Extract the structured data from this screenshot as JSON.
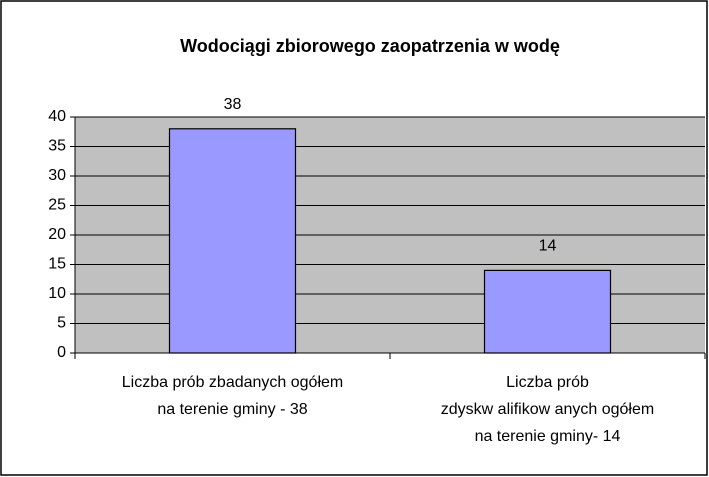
{
  "chart_data": {
    "type": "bar",
    "title": "Wodociągi zbiorowego zaopatrzenia w wodę",
    "categories": [
      [
        "Liczba prób zbadanych ogółem",
        "na terenie gminy - 38"
      ],
      [
        "Liczba prób",
        "zdyskw alifikow anych ogółem",
        "na terenie gminy- 14"
      ]
    ],
    "values": [
      38,
      14
    ],
    "color": "#9999ff",
    "plot_color": "#c0c0c0",
    "ylim": [
      0,
      40
    ],
    "yticks": [
      0,
      5,
      10,
      15,
      20,
      25,
      30,
      35,
      40
    ],
    "grid": true
  }
}
